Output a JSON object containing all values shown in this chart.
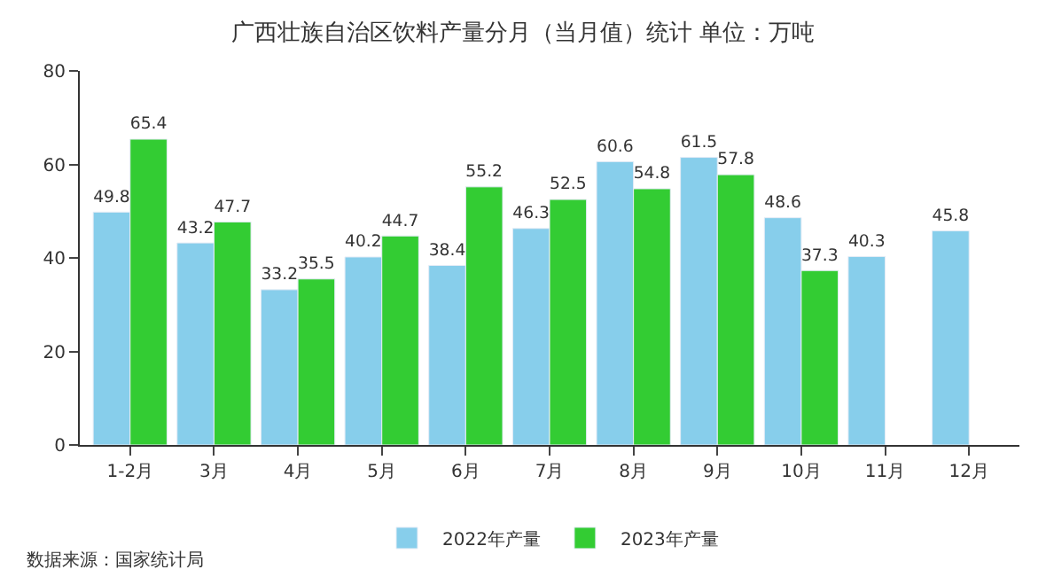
{
  "chart_data": {
    "type": "bar",
    "title": "广西壮族自治区饮料产量分月（当月值）统计 单位：万吨",
    "categories": [
      "1-2月",
      "3月",
      "4月",
      "5月",
      "6月",
      "7月",
      "8月",
      "9月",
      "10月",
      "11月",
      "12月"
    ],
    "series": [
      {
        "name": "2022年产量",
        "color": "#87ceeb",
        "values": [
          49.8,
          43.2,
          33.2,
          40.2,
          38.4,
          46.3,
          60.6,
          61.5,
          48.6,
          40.3,
          45.8
        ]
      },
      {
        "name": "2023年产量",
        "color": "#33cc33",
        "values": [
          65.4,
          47.7,
          35.5,
          44.7,
          55.2,
          52.5,
          54.8,
          57.8,
          37.3,
          null,
          null
        ]
      }
    ],
    "ylim": [
      0,
      80
    ],
    "yticks": [
      0,
      20,
      40,
      60,
      80
    ],
    "legend": "bottom",
    "data_labels": true,
    "annotations": [
      "数据来源：国家统计局"
    ]
  }
}
